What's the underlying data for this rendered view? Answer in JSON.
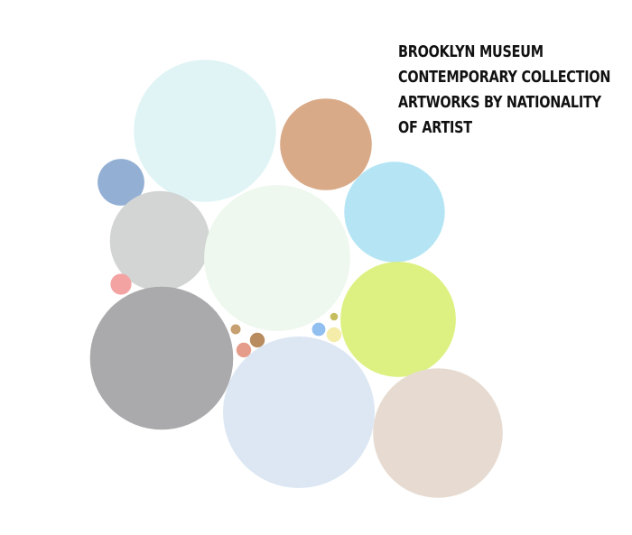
{
  "chart_data": {
    "type": "bubble",
    "title_lines": [
      "BROOKLYN MUSEUM",
      "CONTEMPORARY COLLECTION",
      "ARTWORKS BY NATIONALITY",
      "OF ARTIST"
    ],
    "bubbles": [
      {
        "id": "b01",
        "value": 2025,
        "color": "#e0f4f6"
      },
      {
        "id": "b02",
        "value": 841,
        "color": "#d9aa88"
      },
      {
        "id": "b03",
        "value": 219,
        "color": "#93b0d4"
      },
      {
        "id": "b04",
        "value": 1000,
        "color": "#d2d5d3"
      },
      {
        "id": "b05",
        "value": 2136,
        "color": "#eef8ee"
      },
      {
        "id": "b06",
        "value": 1013,
        "color": "#b5e5f5"
      },
      {
        "id": "b07",
        "value": 44,
        "color": "#f4a3a3"
      },
      {
        "id": "b08",
        "value": 1332,
        "color": "#dcf182"
      },
      {
        "id": "b09",
        "value": 2052,
        "color": "#aaaaac"
      },
      {
        "id": "b10",
        "value": 10,
        "color": "#c6a071"
      },
      {
        "id": "b11",
        "value": 22,
        "color": "#b88c5e"
      },
      {
        "id": "b12",
        "value": 22,
        "color": "#e69c8a"
      },
      {
        "id": "b13",
        "value": 18,
        "color": "#90bff0"
      },
      {
        "id": "b14",
        "value": 6,
        "color": "#c6bd5e"
      },
      {
        "id": "b15",
        "value": 22,
        "color": "#f5ecaa"
      },
      {
        "id": "b16",
        "value": 2304,
        "color": "#dce7f3"
      },
      {
        "id": "b17",
        "value": 1681,
        "color": "#e7dbd1"
      }
    ]
  }
}
